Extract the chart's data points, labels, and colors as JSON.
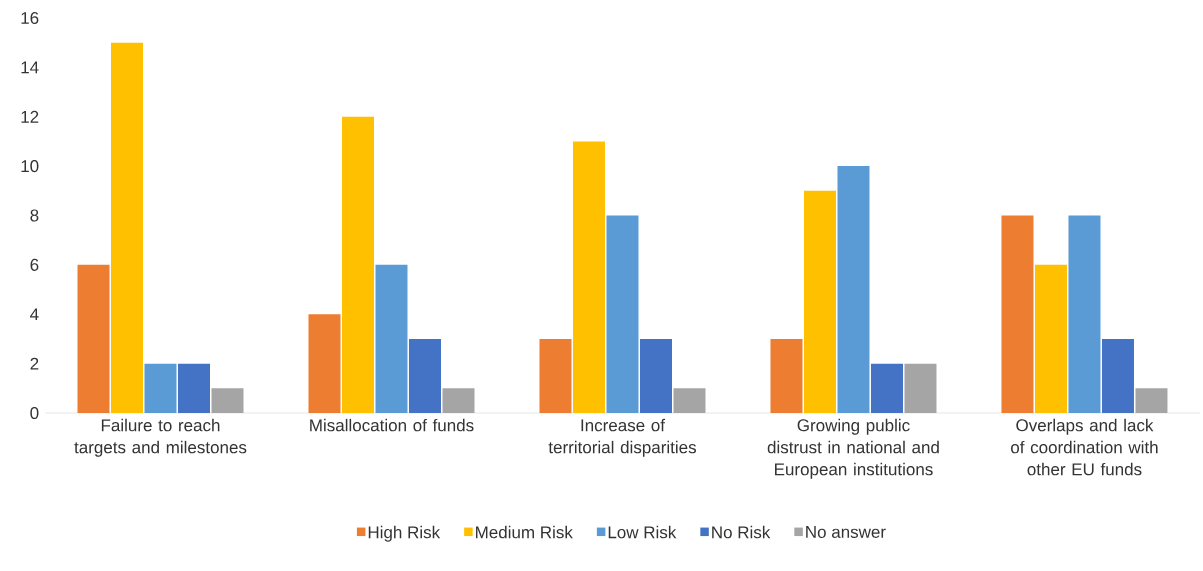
{
  "chart_data": {
    "type": "bar",
    "categories": [
      "Failure to reach targets and milestones",
      "Misallocation of funds",
      "Increase of territorial disparities",
      "Growing public distrust in national and European institutions",
      "Overlaps and lack of coordination with other EU funds"
    ],
    "series": [
      {
        "name": "High Risk",
        "color": "#ed7d31",
        "values": [
          6,
          4,
          3,
          3,
          8
        ]
      },
      {
        "name": "Medium Risk",
        "color": "#ffc000",
        "values": [
          15,
          12,
          11,
          9,
          6
        ]
      },
      {
        "name": "Low Risk",
        "color": "#5b9bd5",
        "values": [
          2,
          6,
          8,
          10,
          8
        ]
      },
      {
        "name": "No Risk",
        "color": "#4472c4",
        "values": [
          2,
          3,
          3,
          2,
          3
        ]
      },
      {
        "name": "No answer",
        "color": "#a5a5a5",
        "values": [
          1,
          1,
          1,
          2,
          1
        ]
      }
    ],
    "ylim": [
      0,
      16
    ],
    "yticks": [
      0,
      2,
      4,
      6,
      8,
      10,
      12,
      14,
      16
    ],
    "legend": "bottom"
  }
}
